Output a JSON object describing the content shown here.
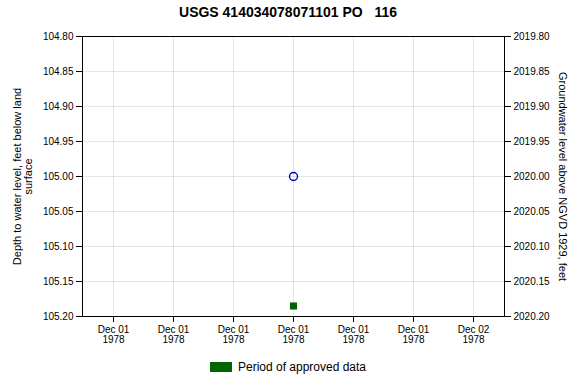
{
  "chart_data": {
    "type": "scatter",
    "title": "USGS 414034078071101 PO   116",
    "ylabel": "Depth to water level, feet below land\nsurface",
    "y2label": "Groundwater level above NGVD 1929, feet",
    "categories": [
      "Dec 01\n1978",
      "Dec 01\n1978",
      "Dec 01\n1978",
      "Dec 01\n1978",
      "Dec 01\n1978",
      "Dec 01\n1978",
      "Dec 02\n1978"
    ],
    "series": [
      {
        "color": "#0000cc",
        "marker": "circle",
        "values": [
          null,
          null,
          null,
          105.0,
          null,
          null,
          null
        ]
      },
      {
        "name": "Period of approved data",
        "color": "#006400",
        "marker": "square",
        "values": [
          null,
          null,
          null,
          105.185,
          null,
          null,
          null
        ]
      }
    ],
    "ylim": [
      105.2,
      104.8
    ],
    "yticks": [
      {
        "value": 104.8,
        "label": "104.80"
      },
      104.85,
      {
        "value": 104.9,
        "label": "104.90"
      },
      104.95,
      {
        "value": 105.0,
        "label": "105.00"
      },
      105.05,
      {
        "value": 105.1,
        "label": "105.10"
      },
      105.15,
      {
        "value": 105.2,
        "label": "105.20"
      }
    ],
    "y2lim": [
      2020.2,
      2019.8
    ],
    "y2ticks": [
      {
        "value": 2019.8,
        "label": "2019.80"
      },
      2019.85,
      {
        "value": 2019.9,
        "label": "2019.90"
      },
      2019.95,
      {
        "value": 2020.0,
        "label": "2020.00"
      },
      2020.05,
      {
        "value": 2020.1,
        "label": "2020.10"
      },
      2020.15,
      {
        "value": 2020.2,
        "label": "2020.20"
      }
    ],
    "grid": true,
    "legend": "bottom"
  }
}
